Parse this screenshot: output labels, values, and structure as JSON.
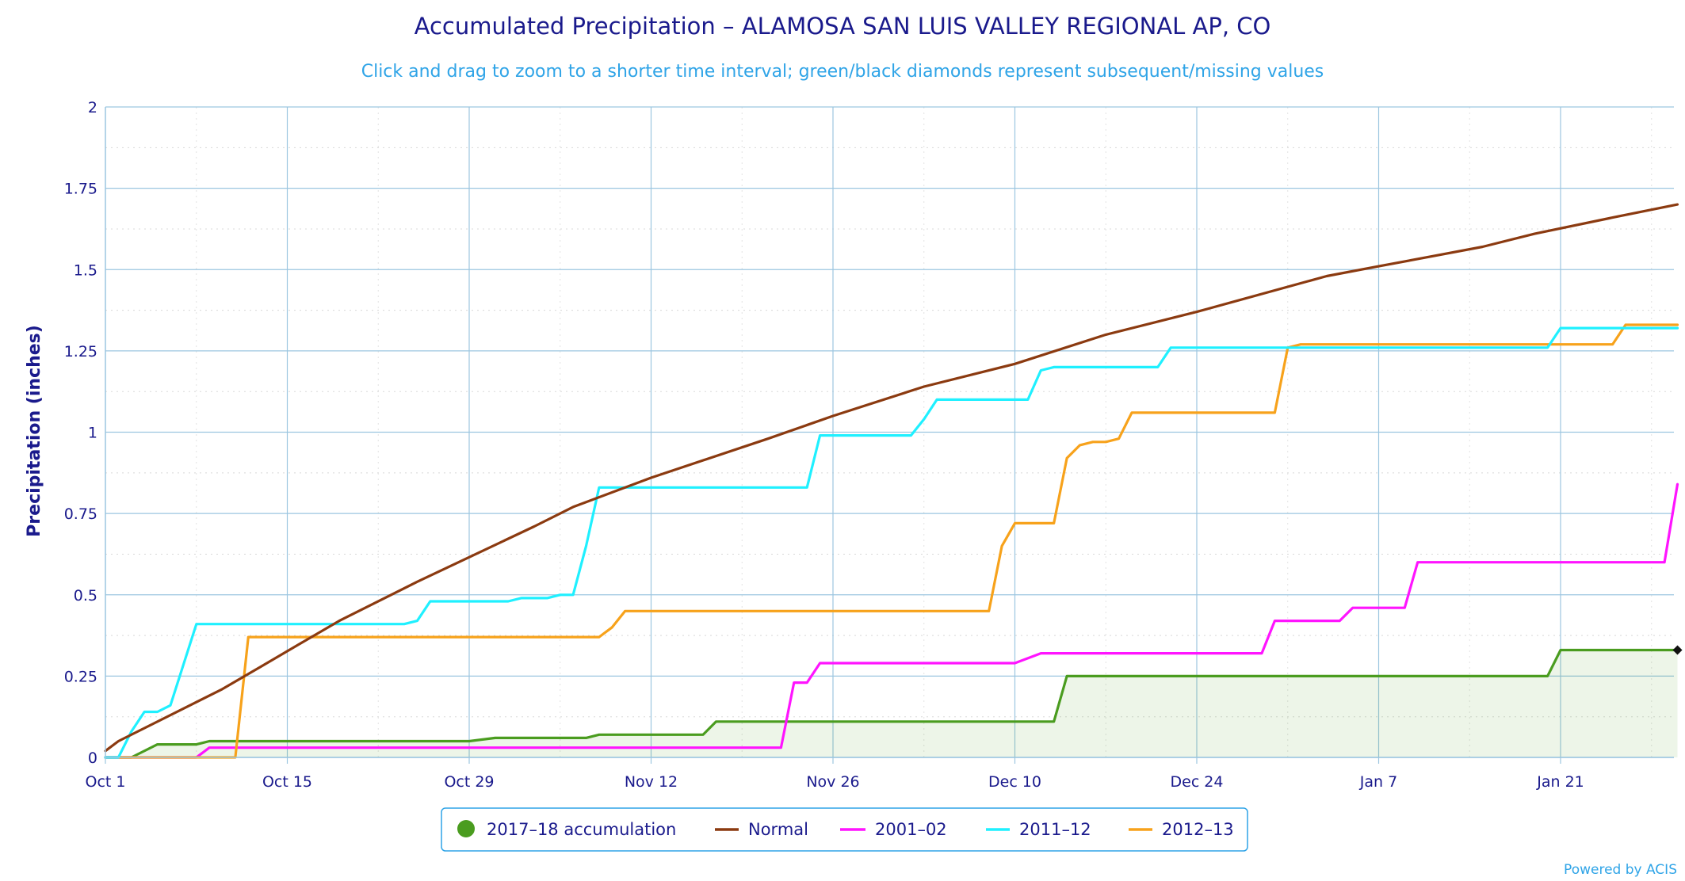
{
  "chart_data": {
    "type": "line",
    "title": "Accumulated Precipitation – ALAMOSA SAN LUIS VALLEY REGIONAL AP, CO",
    "subtitle": "Click and drag to zoom to a shorter time interval; green/black diamonds represent subsequent/missing values",
    "xlabel": "",
    "ylabel": "Precipitation (inches)",
    "x_range_days": [
      0,
      118
    ],
    "x_ticks": [
      {
        "day": 0,
        "label": "Oct 1"
      },
      {
        "day": 14,
        "label": "Oct 15"
      },
      {
        "day": 28,
        "label": "Oct 29"
      },
      {
        "day": 42,
        "label": "Nov 12"
      },
      {
        "day": 56,
        "label": "Nov 26"
      },
      {
        "day": 70,
        "label": "Dec 10"
      },
      {
        "day": 84,
        "label": "Dec 24"
      },
      {
        "day": 98,
        "label": "Jan 7"
      },
      {
        "day": 112,
        "label": "Jan 21"
      }
    ],
    "ylim": [
      0,
      2
    ],
    "y_ticks": [
      {
        "value": 0,
        "label": "0"
      },
      {
        "value": 0.25,
        "label": "0.25"
      },
      {
        "value": 0.5,
        "label": "0.5"
      },
      {
        "value": 0.75,
        "label": "0.75"
      },
      {
        "value": 1,
        "label": "1"
      },
      {
        "value": 1.25,
        "label": "1.25"
      },
      {
        "value": 1.5,
        "label": "1.5"
      },
      {
        "value": 1.75,
        "label": "1.75"
      },
      {
        "value": 2,
        "label": "2"
      }
    ],
    "grid": true,
    "legend_position": "bottom-center",
    "series": [
      {
        "name": "2017–18 accumulation",
        "color": "#4a9c1f",
        "fill": true,
        "points": [
          [
            0,
            0
          ],
          [
            2,
            0
          ],
          [
            4,
            0.04
          ],
          [
            7,
            0.04
          ],
          [
            8,
            0.05
          ],
          [
            28,
            0.05
          ],
          [
            30,
            0.06
          ],
          [
            37,
            0.06
          ],
          [
            38,
            0.07
          ],
          [
            46,
            0.07
          ],
          [
            47,
            0.11
          ],
          [
            73,
            0.11
          ],
          [
            74,
            0.25
          ],
          [
            111,
            0.25
          ],
          [
            112,
            0.33
          ],
          [
            121,
            0.33
          ]
        ]
      },
      {
        "name": "Normal",
        "color": "#8b3a10",
        "fill": false,
        "points": [
          [
            0,
            0.02
          ],
          [
            1,
            0.05
          ],
          [
            9,
            0.21
          ],
          [
            12,
            0.28
          ],
          [
            15,
            0.35
          ],
          [
            18,
            0.42
          ],
          [
            24,
            0.54
          ],
          [
            33,
            0.71
          ],
          [
            36,
            0.77
          ],
          [
            42,
            0.86
          ],
          [
            51,
            0.98
          ],
          [
            56,
            1.05
          ],
          [
            63,
            1.14
          ],
          [
            70,
            1.21
          ],
          [
            77,
            1.3
          ],
          [
            84,
            1.37
          ],
          [
            94,
            1.48
          ],
          [
            98,
            1.51
          ],
          [
            102,
            1.54
          ],
          [
            106,
            1.57
          ],
          [
            110,
            1.61
          ],
          [
            116,
            1.66
          ],
          [
            121,
            1.7
          ]
        ]
      },
      {
        "name": "2001–02",
        "color": "#ff14ff",
        "fill": false,
        "points": [
          [
            0,
            0
          ],
          [
            7,
            0
          ],
          [
            8,
            0.03
          ],
          [
            52,
            0.03
          ],
          [
            53,
            0.23
          ],
          [
            54,
            0.23
          ],
          [
            55,
            0.29
          ],
          [
            70,
            0.29
          ],
          [
            72,
            0.32
          ],
          [
            89,
            0.32
          ],
          [
            90,
            0.42
          ],
          [
            95,
            0.42
          ],
          [
            96,
            0.46
          ],
          [
            100,
            0.46
          ],
          [
            101,
            0.6
          ],
          [
            120,
            0.6
          ],
          [
            121,
            0.84
          ]
        ]
      },
      {
        "name": "2011–12",
        "color": "#1ff0ff",
        "fill": false,
        "points": [
          [
            0,
            0
          ],
          [
            1,
            0
          ],
          [
            2,
            0.08
          ],
          [
            3,
            0.14
          ],
          [
            4,
            0.14
          ],
          [
            5,
            0.16
          ],
          [
            7,
            0.41
          ],
          [
            23,
            0.41
          ],
          [
            24,
            0.42
          ],
          [
            25,
            0.48
          ],
          [
            31,
            0.48
          ],
          [
            32,
            0.49
          ],
          [
            34,
            0.49
          ],
          [
            35,
            0.5
          ],
          [
            36,
            0.5
          ],
          [
            37,
            0.65
          ],
          [
            38,
            0.83
          ],
          [
            54,
            0.83
          ],
          [
            55,
            0.99
          ],
          [
            62,
            0.99
          ],
          [
            63,
            1.04
          ],
          [
            64,
            1.1
          ],
          [
            71,
            1.1
          ],
          [
            72,
            1.19
          ],
          [
            73,
            1.2
          ],
          [
            81,
            1.2
          ],
          [
            82,
            1.26
          ],
          [
            111,
            1.26
          ],
          [
            112,
            1.32
          ],
          [
            121,
            1.32
          ]
        ]
      },
      {
        "name": "2012–13",
        "color": "#f7a21b",
        "fill": false,
        "points": [
          [
            0,
            0
          ],
          [
            10,
            0
          ],
          [
            11,
            0.37
          ],
          [
            38,
            0.37
          ],
          [
            39,
            0.4
          ],
          [
            40,
            0.45
          ],
          [
            68,
            0.45
          ],
          [
            69,
            0.65
          ],
          [
            70,
            0.72
          ],
          [
            73,
            0.72
          ],
          [
            74,
            0.92
          ],
          [
            75,
            0.96
          ],
          [
            76,
            0.97
          ],
          [
            77,
            0.97
          ],
          [
            78,
            0.98
          ],
          [
            79,
            1.06
          ],
          [
            90,
            1.06
          ],
          [
            91,
            1.26
          ],
          [
            92,
            1.27
          ],
          [
            116,
            1.27
          ],
          [
            117,
            1.33
          ],
          [
            121,
            1.33
          ]
        ]
      }
    ],
    "missing_markers": [
      {
        "day": 121,
        "value": 0.33
      }
    ]
  },
  "legend": {
    "items": [
      "2017–18 accumulation",
      "Normal",
      "2001–02",
      "2011–12",
      "2012–13"
    ]
  },
  "credit": "Powered by ACIS"
}
